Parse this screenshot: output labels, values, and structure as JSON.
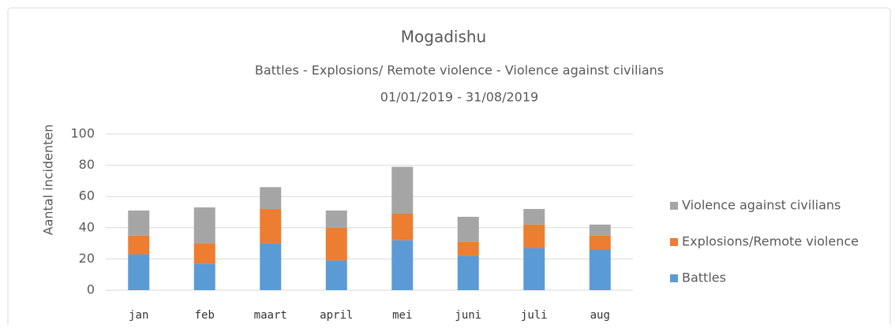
{
  "chart_data": {
    "type": "stacked_bar",
    "title": "Mogadishu",
    "subtitle": "Battles - Explosions/ Remote violence - Violence against civilians",
    "date_range": "01/01/2019 - 31/08/2019",
    "y_label": "Aantal incidenten",
    "categories": [
      "jan",
      "feb",
      "maart",
      "april",
      "mei",
      "juni",
      "juli",
      "aug"
    ],
    "series": [
      {
        "name": "Battles",
        "color": "#5b9bd5",
        "values": [
          23,
          17,
          30,
          19,
          32,
          22,
          27,
          26
        ]
      },
      {
        "name": "Explosions/Remote violence",
        "color": "#ed7d31",
        "values": [
          12,
          13,
          22,
          21,
          17,
          9,
          15,
          9
        ]
      },
      {
        "name": "Violence against civilians",
        "color": "#a5a5a5",
        "values": [
          16,
          23,
          14,
          11,
          30,
          16,
          10,
          7
        ]
      }
    ],
    "ylim": [
      0,
      100
    ],
    "yticks": [
      0,
      20,
      40,
      60,
      80,
      100
    ],
    "grid": true,
    "legend": "right"
  }
}
